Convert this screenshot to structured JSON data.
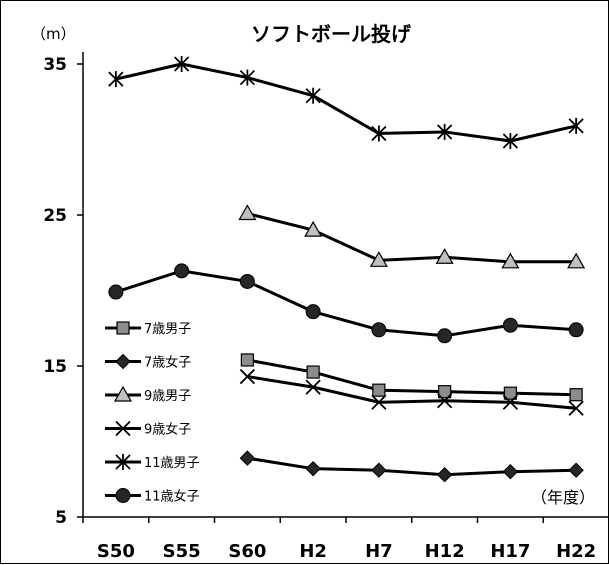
{
  "chart_data": {
    "type": "line",
    "title": "ソフトボール投げ",
    "ylabel": "（m）",
    "xlabel": "（年度）",
    "categories": [
      "S50",
      "S55",
      "S60",
      "H2",
      "H7",
      "H12",
      "H17",
      "H22"
    ],
    "ylim": [
      5,
      35
    ],
    "yticks": [
      5,
      15,
      25,
      35
    ],
    "grid": false,
    "legend_position": "left",
    "series": [
      {
        "name": "7歳男子",
        "marker": "square",
        "values": [
          null,
          null,
          15.4,
          14.6,
          13.4,
          13.3,
          13.2,
          13.1
        ]
      },
      {
        "name": "7歳女子",
        "marker": "diamond",
        "values": [
          null,
          null,
          8.9,
          8.2,
          8.1,
          7.8,
          8.0,
          8.1
        ]
      },
      {
        "name": "9歳男子",
        "marker": "triangle",
        "values": [
          null,
          null,
          25.1,
          24.0,
          22.0,
          22.2,
          21.9,
          21.9
        ]
      },
      {
        "name": "9歳女子",
        "marker": "x",
        "values": [
          null,
          null,
          14.3,
          13.6,
          12.6,
          12.7,
          12.6,
          12.2
        ]
      },
      {
        "name": "11歳男子",
        "marker": "asterisk",
        "values": [
          34.0,
          35.0,
          34.1,
          32.9,
          30.4,
          30.5,
          29.9,
          30.9
        ]
      },
      {
        "name": "11歳女子",
        "marker": "circle",
        "values": [
          19.9,
          21.3,
          20.6,
          18.6,
          17.4,
          17.0,
          17.7,
          17.4
        ]
      }
    ],
    "colors": {
      "line": "#000000",
      "marker_fill_square": "#8c8c8c",
      "marker_fill_triangle": "#c0c0c0",
      "marker_fill_dark": "#262626"
    }
  }
}
